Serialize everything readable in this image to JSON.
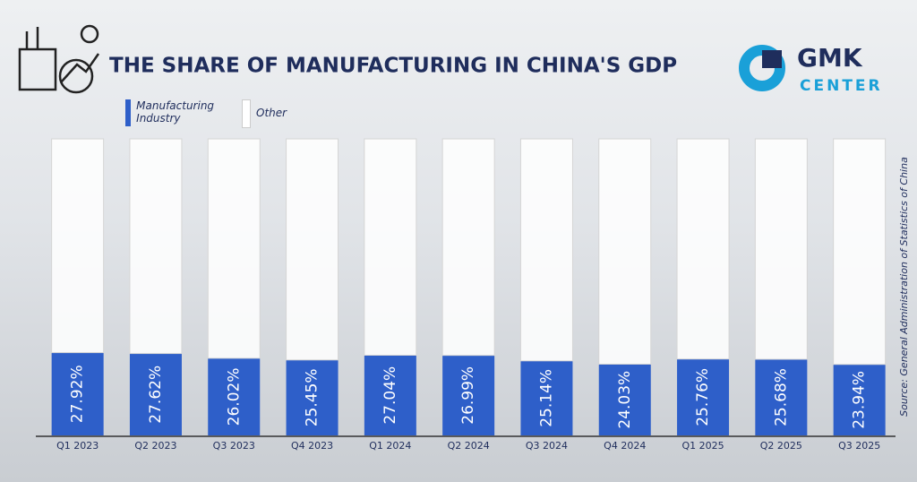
{
  "chart_data": {
    "type": "stacked_bar",
    "title": "THE SHARE OF MANUFACTURING IN CHINA'S GDP",
    "source": "Source: General Administration of Statistics of China",
    "categories": [
      "Q1 2023",
      "Q2 2023",
      "Q3 2023",
      "Q4 2023",
      "Q1 2024",
      "Q2 2024",
      "Q3 2024",
      "Q4 2024",
      "Q1 2025",
      "Q2 2025",
      "Q3 2025"
    ],
    "series": [
      {
        "name": "Manufacturing Industry",
        "color": "#2e5fc9",
        "values": [
          27.92,
          27.62,
          26.02,
          25.45,
          27.04,
          26.99,
          25.14,
          24.03,
          25.76,
          25.68,
          23.94
        ],
        "value_labels": [
          "27.92%",
          "27.62%",
          "26.02%",
          "25.45%",
          "27.04%",
          "26.99%",
          "25.14%",
          "24.03%",
          "25.76%",
          "25.68%",
          "23.94%"
        ]
      },
      {
        "name": "Other",
        "color": "#ffffff",
        "values": [
          72.08,
          72.38,
          73.98,
          74.55,
          72.96,
          73.01,
          74.86,
          75.97,
          74.24,
          74.32,
          76.06
        ]
      }
    ],
    "ylim": [
      0,
      100
    ]
  },
  "logo": {
    "line1": "GMK",
    "line2": "CENTER"
  }
}
